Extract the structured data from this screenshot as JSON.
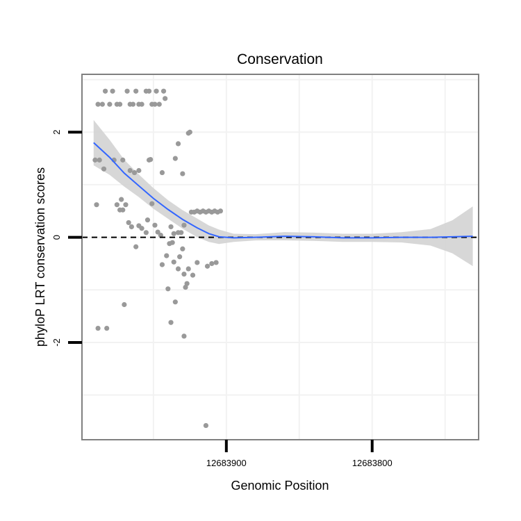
{
  "chart_data": {
    "type": "scatter",
    "title": "Conservation",
    "xlabel": "Genomic Position",
    "ylabel": "phyloP LRT conservation scores",
    "x_reversed": true,
    "xlim": [
      12683999,
      12683727
    ],
    "ylim": [
      -3.85,
      3.1
    ],
    "x_ticks": [
      {
        "value": 12683900,
        "label": "12683900"
      },
      {
        "value": 12683800,
        "label": "12683800"
      }
    ],
    "y_ticks": [
      {
        "value": 2,
        "label": "2"
      },
      {
        "value": 0,
        "label": "0"
      },
      {
        "value": -2,
        "label": "-2"
      }
    ],
    "reference_line": {
      "y": 0,
      "style": "dashed"
    },
    "colors": {
      "points": "#999999",
      "smooth_line": "#3366ff",
      "confidence_band": "#d3d3d3",
      "panel_border": "#808080",
      "grid": "#f2f2f2"
    },
    "series": [
      {
        "name": "scores",
        "points": [
          [
            12683988,
            2.53
          ],
          [
            12683985,
            2.53
          ],
          [
            12683983,
            2.78
          ],
          [
            12683980,
            2.53
          ],
          [
            12683978,
            2.78
          ],
          [
            12683975,
            2.53
          ],
          [
            12683973,
            2.53
          ],
          [
            12683968,
            2.78
          ],
          [
            12683966,
            2.53
          ],
          [
            12683964,
            2.53
          ],
          [
            12683962,
            2.78
          ],
          [
            12683960,
            2.53
          ],
          [
            12683958,
            2.53
          ],
          [
            12683955,
            2.78
          ],
          [
            12683953,
            2.78
          ],
          [
            12683951,
            2.53
          ],
          [
            12683949,
            2.53
          ],
          [
            12683948,
            2.78
          ],
          [
            12683946,
            2.53
          ],
          [
            12683943,
            2.78
          ],
          [
            12683942,
            2.64
          ],
          [
            12683990,
            1.47
          ],
          [
            12683987,
            1.47
          ],
          [
            12683984,
            1.3
          ],
          [
            12683977,
            1.47
          ],
          [
            12683971,
            1.47
          ],
          [
            12683966,
            1.27
          ],
          [
            12683963,
            1.23
          ],
          [
            12683960,
            1.27
          ],
          [
            12683953,
            1.47
          ],
          [
            12683952,
            1.48
          ],
          [
            12683944,
            1.23
          ],
          [
            12683935,
            1.5
          ],
          [
            12683933,
            1.78
          ],
          [
            12683930,
            1.21
          ],
          [
            12683926,
            1.98
          ],
          [
            12683925,
            2.0
          ],
          [
            12683989,
            0.62
          ],
          [
            12683975,
            0.62
          ],
          [
            12683973,
            0.52
          ],
          [
            12683972,
            0.72
          ],
          [
            12683971,
            0.52
          ],
          [
            12683969,
            0.62
          ],
          [
            12683967,
            0.28
          ],
          [
            12683965,
            0.2
          ],
          [
            12683962,
            -0.18
          ],
          [
            12683960,
            0.22
          ],
          [
            12683958,
            0.17
          ],
          [
            12683955,
            0.09
          ],
          [
            12683954,
            0.33
          ],
          [
            12683951,
            0.64
          ],
          [
            12683949,
            0.23
          ],
          [
            12683947,
            0.1
          ],
          [
            12683945,
            0.04
          ],
          [
            12683938,
            0.2
          ],
          [
            12683936,
            0.07
          ],
          [
            12683933,
            0.09
          ],
          [
            12683931,
            0.09
          ],
          [
            12683929,
            0.23
          ],
          [
            12683924,
            0.48
          ],
          [
            12683922,
            0.48
          ],
          [
            12683920,
            0.5
          ],
          [
            12683918,
            0.48
          ],
          [
            12683916,
            0.5
          ],
          [
            12683914,
            0.48
          ],
          [
            12683912,
            0.5
          ],
          [
            12683910,
            0.48
          ],
          [
            12683908,
            0.5
          ],
          [
            12683906,
            0.48
          ],
          [
            12683904,
            0.5
          ],
          [
            12683944,
            -0.52
          ],
          [
            12683941,
            -0.35
          ],
          [
            12683940,
            -0.98
          ],
          [
            12683939,
            -0.12
          ],
          [
            12683937,
            -0.1
          ],
          [
            12683936,
            -0.47
          ],
          [
            12683935,
            -1.23
          ],
          [
            12683933,
            -0.6
          ],
          [
            12683932,
            -0.37
          ],
          [
            12683930,
            -0.22
          ],
          [
            12683929,
            -0.7
          ],
          [
            12683928,
            -0.95
          ],
          [
            12683927,
            -0.88
          ],
          [
            12683926,
            -0.6
          ],
          [
            12683923,
            -0.72
          ],
          [
            12683920,
            -0.48
          ],
          [
            12683913,
            -0.55
          ],
          [
            12683910,
            -0.5
          ],
          [
            12683907,
            -0.48
          ],
          [
            12683988,
            -1.73
          ],
          [
            12683982,
            -1.73
          ],
          [
            12683970,
            -1.28
          ],
          [
            12683938,
            -1.62
          ],
          [
            12683929,
            -1.88
          ],
          [
            12683914,
            -3.58
          ]
        ]
      }
    ],
    "smooth": {
      "x": [
        12683991,
        12683980,
        12683970,
        12683960,
        12683950,
        12683940,
        12683930,
        12683920,
        12683912,
        12683905,
        12683895,
        12683880,
        12683860,
        12683840,
        12683820,
        12683800,
        12683780,
        12683760,
        12683745,
        12683731
      ],
      "y": [
        1.8,
        1.52,
        1.22,
        0.98,
        0.74,
        0.53,
        0.34,
        0.18,
        0.07,
        0.01,
        -0.01,
        0.0,
        0.02,
        0.01,
        -0.01,
        -0.01,
        0.0,
        0.0,
        0.01,
        0.02
      ],
      "se": [
        0.22,
        0.17,
        0.13,
        0.11,
        0.1,
        0.09,
        0.09,
        0.09,
        0.08,
        0.07,
        0.04,
        0.03,
        0.04,
        0.04,
        0.04,
        0.04,
        0.05,
        0.08,
        0.16,
        0.29
      ]
    }
  }
}
